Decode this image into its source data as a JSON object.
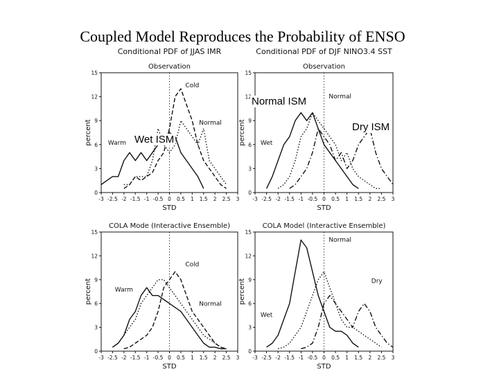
{
  "slide": {
    "title": "Coupled Model Reproduces the Probability of ENSO",
    "overlays": {
      "normal": "Normal ISM",
      "wet": "Wet ISM",
      "dry": "Dry ISM"
    }
  },
  "colors": {
    "line": "#111111",
    "background": "#ffffff"
  },
  "chart_data": [
    {
      "type": "line",
      "column_title": "Conditional PDF of JJAS IMR",
      "title": "Observation",
      "xlabel": "STD",
      "ylabel": "percent",
      "xlim": [
        -3,
        3
      ],
      "ylim": [
        0,
        15
      ],
      "xticks": [
        "-3",
        "-2.5",
        "-2",
        "-1.5",
        "-1",
        "-0.5",
        "0",
        "0.5",
        "1",
        "1.5",
        "2",
        "2.5",
        "3"
      ],
      "yticks": [
        "0",
        "3",
        "6",
        "9",
        "12",
        "15"
      ],
      "series": [
        {
          "name": "Warm",
          "style": "solid",
          "x": [
            -3,
            -2.75,
            -2.5,
            -2.25,
            -2,
            -1.75,
            -1.5,
            -1.25,
            -1,
            -0.75,
            -0.5,
            -0.25,
            0,
            0.25,
            0.5,
            0.75,
            1,
            1.25,
            1.5
          ],
          "y": [
            1,
            1.5,
            2,
            2,
            4,
            5,
            4,
            5,
            4,
            5,
            6,
            7,
            7.5,
            7,
            5,
            4,
            3,
            2,
            0.5
          ]
        },
        {
          "name": "Cold",
          "style": "dashed",
          "x": [
            -2,
            -1.75,
            -1.5,
            -1.25,
            -1,
            -0.75,
            -0.5,
            -0.25,
            0,
            0.25,
            0.5,
            0.75,
            1,
            1.25,
            1.5,
            1.75,
            2,
            2.25,
            2.5
          ],
          "y": [
            0.5,
            1,
            2,
            1.5,
            2,
            2.5,
            4,
            5,
            8,
            12,
            13,
            11,
            9,
            6,
            4,
            3,
            2,
            1,
            0.5
          ]
        },
        {
          "name": "Normal",
          "style": "dotted",
          "x": [
            -2,
            -1.75,
            -1.5,
            -1.25,
            -1,
            -0.75,
            -0.5,
            -0.25,
            0,
            0.25,
            0.5,
            0.75,
            1,
            1.25,
            1.5,
            1.75,
            2,
            2.25,
            2.5
          ],
          "y": [
            1,
            1,
            2,
            2,
            2,
            4,
            8,
            6,
            5,
            6,
            9,
            8,
            7,
            6,
            8,
            4,
            3,
            2,
            1
          ]
        }
      ],
      "annotations": [
        {
          "text": "Warm",
          "x": -2.3,
          "y": 6
        },
        {
          "text": "Cold",
          "x": 1.0,
          "y": 13.2
        },
        {
          "text": "Normal",
          "x": 1.8,
          "y": 8.5
        }
      ]
    },
    {
      "type": "line",
      "column_title": "Conditional PDF of DJF NINO3.4 SST",
      "title": "Observation",
      "xlabel": "STD",
      "ylabel": "percent",
      "xlim": [
        -3,
        3
      ],
      "ylim": [
        0,
        15
      ],
      "xticks": [
        "-3",
        "-2.5",
        "-2",
        "-1.5",
        "-1",
        "-0.5",
        "0",
        "0.5",
        "1",
        "1.5",
        "2",
        "2.5",
        "3"
      ],
      "yticks": [
        "0",
        "3",
        "6",
        "9",
        "12",
        "15"
      ],
      "series": [
        {
          "name": "Wet",
          "style": "solid",
          "x": [
            -2.5,
            -2.25,
            -2,
            -1.75,
            -1.5,
            -1.25,
            -1,
            -0.75,
            -0.5,
            -0.25,
            0,
            0.25,
            0.5,
            0.75,
            1,
            1.25,
            1.5
          ],
          "y": [
            0.5,
            2,
            4,
            6,
            7,
            9,
            10,
            9,
            10,
            8,
            6,
            5,
            4,
            3,
            2,
            1,
            0.5
          ]
        },
        {
          "name": "Normal",
          "style": "dotted",
          "x": [
            -2,
            -1.75,
            -1.5,
            -1.25,
            -1,
            -0.75,
            -0.5,
            -0.25,
            0,
            0.25,
            0.5,
            0.75,
            1,
            1.25,
            1.5,
            1.75,
            2,
            2.25,
            2.5
          ],
          "y": [
            0.5,
            1,
            2,
            4,
            7,
            8,
            10,
            9,
            8,
            7,
            6,
            4,
            5,
            3,
            2,
            1.5,
            1,
            0.5,
            0.5
          ]
        },
        {
          "name": "Dry",
          "style": "dashdot",
          "x": [
            -1.5,
            -1.25,
            -1,
            -0.75,
            -0.5,
            -0.25,
            0,
            0.25,
            0.5,
            0.75,
            1,
            1.25,
            1.5,
            1.75,
            2,
            2.25,
            2.5,
            2.75,
            3
          ],
          "y": [
            0.5,
            1,
            2,
            3,
            5,
            8,
            7,
            6,
            4,
            5,
            3,
            4,
            6,
            7,
            8,
            5,
            3,
            2,
            1
          ]
        }
      ],
      "annotations": [
        {
          "text": "Wet",
          "x": -2.5,
          "y": 6
        },
        {
          "text": "Normal",
          "x": 0.7,
          "y": 11.8
        }
      ]
    },
    {
      "type": "line",
      "column_title": "",
      "title": "COLA Mode (Interactive Ensemble)",
      "xlabel": "STD",
      "ylabel": "percent",
      "xlim": [
        -3,
        3
      ],
      "ylim": [
        0,
        15
      ],
      "xticks": [
        "-3",
        "-2.5",
        "-2",
        "-1.5",
        "-1",
        "-0.5",
        "0",
        "0.5",
        "1",
        "1.5",
        "2",
        "2.5",
        "3"
      ],
      "yticks": [
        "0",
        "3",
        "6",
        "9",
        "12",
        "15"
      ],
      "series": [
        {
          "name": "Warm",
          "style": "solid",
          "x": [
            -2.5,
            -2.25,
            -2,
            -1.75,
            -1.5,
            -1.25,
            -1,
            -0.75,
            -0.5,
            -0.25,
            0,
            0.25,
            0.5,
            0.75,
            1,
            1.25,
            1.5,
            1.75,
            2,
            2.25,
            2.5
          ],
          "y": [
            0.5,
            1,
            2,
            4,
            5,
            7,
            8,
            7,
            7,
            6.5,
            6,
            5.5,
            5,
            4,
            3,
            2,
            1,
            0.5,
            0.5,
            0.3,
            0.3
          ]
        },
        {
          "name": "Cold",
          "style": "dashed",
          "x": [
            -2,
            -1.75,
            -1.5,
            -1.25,
            -1,
            -0.75,
            -0.5,
            -0.25,
            0,
            0.25,
            0.5,
            0.75,
            1,
            1.25,
            1.5,
            1.75,
            2,
            2.25,
            2.5
          ],
          "y": [
            0.3,
            0.5,
            1,
            1.5,
            2,
            3,
            5,
            8,
            9,
            10,
            9,
            7,
            5,
            4,
            3,
            2,
            1,
            0.5,
            0.3
          ]
        },
        {
          "name": "Normal",
          "style": "dotted",
          "x": [
            -2.5,
            -2.25,
            -2,
            -1.75,
            -1.5,
            -1.25,
            -1,
            -0.75,
            -0.5,
            -0.25,
            0,
            0.25,
            0.5,
            0.75,
            1,
            1.25,
            1.5,
            1.75,
            2,
            2.25,
            2.5
          ],
          "y": [
            0.5,
            1,
            2,
            3,
            4,
            6,
            7,
            8,
            9,
            9,
            8,
            7,
            6,
            5,
            4,
            3,
            2,
            1.5,
            1,
            0.5,
            0.3
          ]
        }
      ],
      "annotations": [
        {
          "text": "Warm",
          "x": -2.0,
          "y": 7.5
        },
        {
          "text": "Cold",
          "x": 1.0,
          "y": 10.7
        },
        {
          "text": "Normal",
          "x": 1.8,
          "y": 5.7
        }
      ]
    },
    {
      "type": "line",
      "column_title": "",
      "title": "COLA Model (Interactive Ensemble)",
      "xlabel": "STD",
      "ylabel": "percent",
      "xlim": [
        -3,
        3
      ],
      "ylim": [
        0,
        15
      ],
      "xticks": [
        "-3",
        "-2.5",
        "-2",
        "-1.5",
        "-1",
        "-0.5",
        "0",
        "0.5",
        "1",
        "1.5",
        "2",
        "2.5",
        "3"
      ],
      "yticks": [
        "0",
        "3",
        "6",
        "9",
        "12",
        "15"
      ],
      "series": [
        {
          "name": "Wet",
          "style": "solid",
          "x": [
            -2.5,
            -2.25,
            -2,
            -1.75,
            -1.5,
            -1.25,
            -1,
            -0.75,
            -0.5,
            -0.25,
            0,
            0.25,
            0.5,
            0.75,
            1,
            1.25,
            1.5
          ],
          "y": [
            0.5,
            1,
            2,
            4,
            6,
            10,
            14,
            13,
            10,
            7,
            5,
            3,
            2.5,
            2.5,
            2,
            1,
            0.5
          ]
        },
        {
          "name": "Normal",
          "style": "dotted",
          "x": [
            -2,
            -1.75,
            -1.5,
            -1.25,
            -1,
            -0.75,
            -0.5,
            -0.25,
            0,
            0.25,
            0.5,
            0.75,
            1,
            1.25,
            1.5,
            1.75,
            2,
            2.25,
            2.5
          ],
          "y": [
            0.3,
            0.5,
            1,
            2,
            3,
            5,
            7,
            9,
            10,
            8,
            6,
            4,
            3,
            3,
            2.5,
            2,
            1.5,
            1,
            0.5
          ]
        },
        {
          "name": "Dry",
          "style": "dashdot",
          "x": [
            -1,
            -0.75,
            -0.5,
            -0.25,
            0,
            0.25,
            0.5,
            0.75,
            1,
            1.25,
            1.5,
            1.75,
            2,
            2.25,
            2.5,
            2.75,
            3
          ],
          "y": [
            0.3,
            0.5,
            1,
            3,
            6,
            7,
            6,
            5,
            4,
            3,
            5,
            6,
            5,
            3,
            2,
            1,
            0.5
          ]
        }
      ],
      "annotations": [
        {
          "text": "Wet",
          "x": -2.5,
          "y": 4.3
        },
        {
          "text": "Normal",
          "x": 0.7,
          "y": 13.8
        },
        {
          "text": "Dry",
          "x": 2.3,
          "y": 8.6
        }
      ]
    }
  ]
}
